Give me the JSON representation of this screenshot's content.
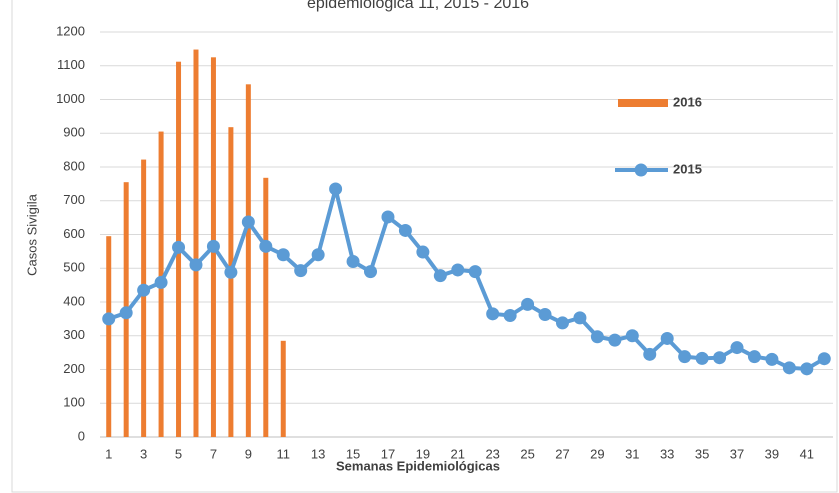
{
  "chart_data": {
    "type": "bar_line",
    "title": "epidemiológica 11, 2015 - 2016",
    "x_label": "Semanas Epidemiológicas",
    "y_label": "Casos Sivigila",
    "categories": [
      "1",
      null,
      "3",
      null,
      "5",
      null,
      "7",
      null,
      "9",
      null,
      "11",
      null,
      "13",
      null,
      "15",
      null,
      "17",
      null,
      "19",
      null,
      "21",
      null,
      "23",
      null,
      "25",
      null,
      "27",
      null,
      "29",
      null,
      "31",
      null,
      "33",
      null,
      "35",
      null,
      "37",
      null,
      "39",
      null,
      "41",
      null
    ],
    "series": [
      {
        "name": "2016",
        "type": "bar",
        "color": "#ed7d31",
        "values": [
          595,
          755,
          822,
          905,
          1112,
          1148,
          1125,
          918,
          1045,
          768,
          285,
          null,
          null,
          null,
          null,
          null,
          null,
          null,
          null,
          null,
          null,
          null,
          null,
          null,
          null,
          null,
          null,
          null,
          null,
          null,
          null,
          null,
          null,
          null,
          null,
          null,
          null,
          null,
          null,
          null,
          null,
          null
        ]
      },
      {
        "name": "2015",
        "type": "line",
        "color": "#5b9bd5",
        "values": [
          350,
          368,
          435,
          458,
          562,
          510,
          565,
          488,
          637,
          565,
          540,
          493,
          540,
          735,
          520,
          490,
          652,
          612,
          548,
          478,
          495,
          490,
          365,
          360,
          393,
          363,
          338,
          353,
          297,
          287,
          300,
          245,
          292,
          238,
          233,
          235,
          265,
          238,
          230,
          205,
          202,
          232
        ]
      }
    ],
    "ylim": [
      0,
      1200
    ],
    "yticks": [
      0,
      100,
      200,
      300,
      400,
      500,
      600,
      700,
      800,
      900,
      1000,
      1100,
      1200
    ],
    "grid": true,
    "legend": "right"
  }
}
